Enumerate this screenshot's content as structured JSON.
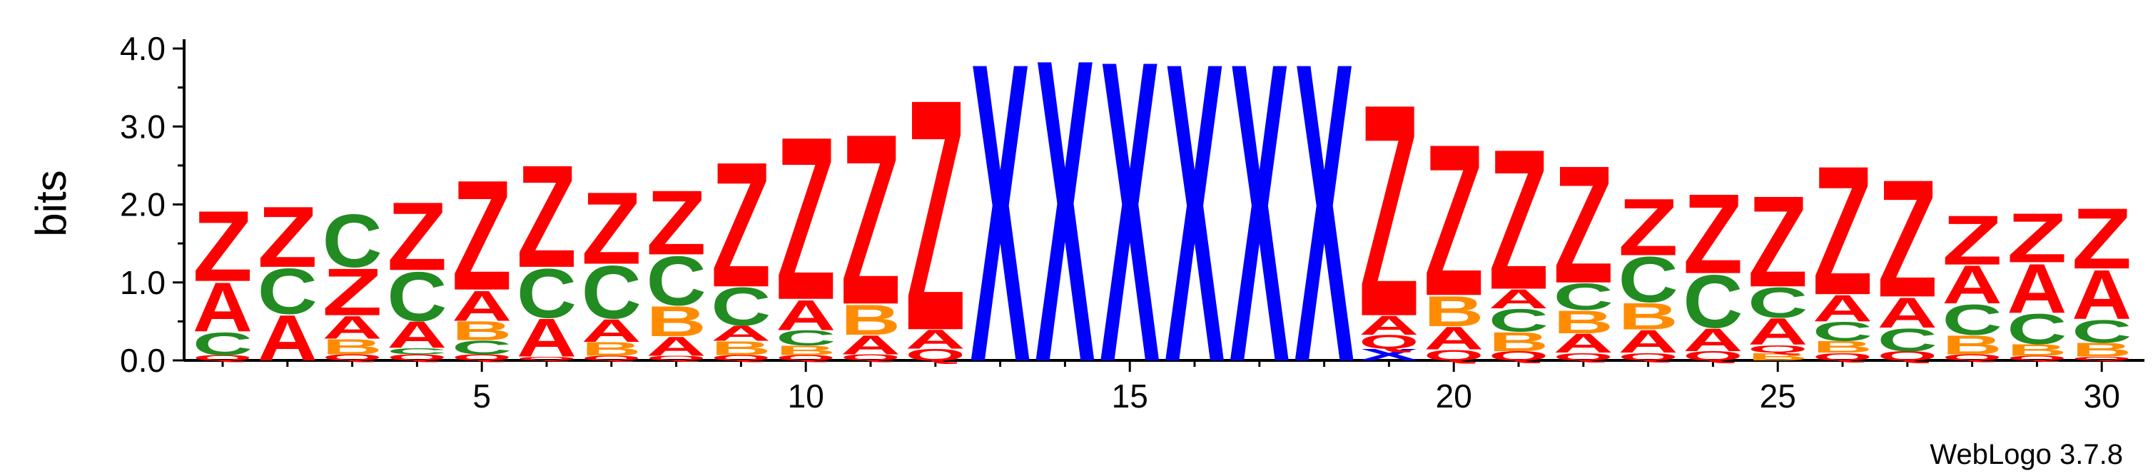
{
  "chart_data": {
    "type": "sequence-logo",
    "title": "",
    "ylabel": "bits",
    "xlabel": "",
    "ylim": [
      0,
      4.0
    ],
    "y_ticks": [
      "0.0",
      "1.0",
      "2.0",
      "3.0",
      "4.0"
    ],
    "y_tick_values": [
      0,
      1,
      2,
      3,
      4
    ],
    "x_ticks": [
      "5",
      "10",
      "15",
      "20",
      "25",
      "30"
    ],
    "x_tick_values": [
      5,
      10,
      15,
      20,
      25,
      30
    ],
    "credit": "WebLogo 3.7.8",
    "colors": {
      "Z": "#ff0000",
      "A": "#ff0000",
      "Q": "#ff0000",
      "C": "#228b22",
      "B": "#ff8c00",
      "X": "#0000ff",
      "P": "#800080"
    },
    "positions": [
      {
        "pos": 1,
        "stack": [
          [
            "Q",
            0.07
          ],
          [
            "C",
            0.3
          ],
          [
            "A",
            0.65
          ],
          [
            "Z",
            0.93
          ]
        ]
      },
      {
        "pos": 2,
        "stack": [
          [
            "A",
            0.6
          ],
          [
            "C",
            0.6
          ],
          [
            "Z",
            0.8
          ]
        ]
      },
      {
        "pos": 3,
        "stack": [
          [
            "Q",
            0.08
          ],
          [
            "B",
            0.2
          ],
          [
            "A",
            0.3
          ],
          [
            "Z",
            0.62
          ],
          [
            "C",
            0.7
          ]
        ]
      },
      {
        "pos": 4,
        "stack": [
          [
            "Q",
            0.08
          ],
          [
            "C",
            0.08
          ],
          [
            "A",
            0.35
          ],
          [
            "C",
            0.65
          ],
          [
            "Z",
            0.9
          ]
        ]
      },
      {
        "pos": 5,
        "stack": [
          [
            "Q",
            0.08
          ],
          [
            "C",
            0.18
          ],
          [
            "B",
            0.25
          ],
          [
            "A",
            0.4
          ],
          [
            "Z",
            1.45
          ]
        ]
      },
      {
        "pos": 6,
        "stack": [
          [
            "Q",
            0.05
          ],
          [
            "A",
            0.5
          ],
          [
            "C",
            0.65
          ],
          [
            "Z",
            1.35
          ]
        ]
      },
      {
        "pos": 7,
        "stack": [
          [
            "Q",
            0.06
          ],
          [
            "B",
            0.18
          ],
          [
            "A",
            0.3
          ],
          [
            "C",
            0.7
          ],
          [
            "Z",
            0.95
          ]
        ]
      },
      {
        "pos": 8,
        "stack": [
          [
            "Q",
            0.06
          ],
          [
            "A",
            0.25
          ],
          [
            "B",
            0.4
          ],
          [
            "C",
            0.65
          ],
          [
            "Z",
            0.85
          ]
        ]
      },
      {
        "pos": 9,
        "stack": [
          [
            "Q",
            0.07
          ],
          [
            "B",
            0.18
          ],
          [
            "A",
            0.2
          ],
          [
            "C",
            0.5
          ],
          [
            "Z",
            1.65
          ]
        ]
      },
      {
        "pos": 10,
        "stack": [
          [
            "Q",
            0.07
          ],
          [
            "B",
            0.12
          ],
          [
            "C",
            0.2
          ],
          [
            "A",
            0.4
          ],
          [
            "Z",
            2.15
          ]
        ]
      },
      {
        "pos": 11,
        "stack": [
          [
            "Q",
            0.08
          ],
          [
            "A",
            0.25
          ],
          [
            "B",
            0.4
          ],
          [
            "Z",
            2.25
          ]
        ]
      },
      {
        "pos": 12,
        "stack": [
          [
            "Q",
            0.15
          ],
          [
            "A",
            0.25
          ],
          [
            "Z",
            3.05
          ]
        ]
      },
      {
        "pos": 13,
        "stack": [
          [
            "X",
            3.95
          ]
        ]
      },
      {
        "pos": 14,
        "stack": [
          [
            "X",
            4.0
          ]
        ]
      },
      {
        "pos": 15,
        "stack": [
          [
            "X",
            3.98
          ]
        ]
      },
      {
        "pos": 16,
        "stack": [
          [
            "X",
            3.95
          ]
        ]
      },
      {
        "pos": 17,
        "stack": [
          [
            "X",
            3.95
          ]
        ]
      },
      {
        "pos": 18,
        "stack": [
          [
            "X",
            3.95
          ]
        ]
      },
      {
        "pos": 19,
        "stack": [
          [
            "X",
            0.15
          ],
          [
            "Q",
            0.18
          ],
          [
            "A",
            0.25
          ],
          [
            "Z",
            2.8
          ]
        ]
      },
      {
        "pos": 20,
        "stack": [
          [
            "Q",
            0.14
          ],
          [
            "A",
            0.3
          ],
          [
            "B",
            0.4
          ],
          [
            "Z",
            2.0
          ]
        ]
      },
      {
        "pos": 21,
        "stack": [
          [
            "Q",
            0.12
          ],
          [
            "B",
            0.25
          ],
          [
            "C",
            0.3
          ],
          [
            "A",
            0.25
          ],
          [
            "Z",
            1.85
          ]
        ]
      },
      {
        "pos": 22,
        "stack": [
          [
            "Q",
            0.1
          ],
          [
            "A",
            0.25
          ],
          [
            "B",
            0.3
          ],
          [
            "C",
            0.35
          ],
          [
            "Z",
            1.55
          ]
        ]
      },
      {
        "pos": 23,
        "stack": [
          [
            "Q",
            0.1
          ],
          [
            "A",
            0.3
          ],
          [
            "B",
            0.35
          ],
          [
            "C",
            0.6
          ],
          [
            "Z",
            0.75
          ]
        ]
      },
      {
        "pos": 24,
        "stack": [
          [
            "Q",
            0.12
          ],
          [
            "A",
            0.3
          ],
          [
            "C",
            0.7
          ],
          [
            "Z",
            1.05
          ]
        ]
      },
      {
        "pos": 25,
        "stack": [
          [
            "B",
            0.1
          ],
          [
            "Q",
            0.1
          ],
          [
            "A",
            0.35
          ],
          [
            "C",
            0.4
          ],
          [
            "Z",
            1.2
          ]
        ]
      },
      {
        "pos": 26,
        "stack": [
          [
            "Q",
            0.1
          ],
          [
            "B",
            0.15
          ],
          [
            "C",
            0.25
          ],
          [
            "A",
            0.35
          ],
          [
            "Z",
            1.7
          ]
        ]
      },
      {
        "pos": 27,
        "stack": [
          [
            "Q",
            0.12
          ],
          [
            "C",
            0.3
          ],
          [
            "A",
            0.4
          ],
          [
            "Z",
            1.55
          ]
        ]
      },
      {
        "pos": 28,
        "stack": [
          [
            "Q",
            0.08
          ],
          [
            "B",
            0.25
          ],
          [
            "C",
            0.4
          ],
          [
            "A",
            0.5
          ],
          [
            "Z",
            0.65
          ]
        ]
      },
      {
        "pos": 29,
        "stack": [
          [
            "Q",
            0.06
          ],
          [
            "B",
            0.15
          ],
          [
            "C",
            0.4
          ],
          [
            "A",
            0.65
          ],
          [
            "Z",
            0.65
          ]
        ]
      },
      {
        "pos": 30,
        "stack": [
          [
            "Q",
            0.05
          ],
          [
            "B",
            0.18
          ],
          [
            "C",
            0.3
          ],
          [
            "A",
            0.65
          ],
          [
            "Z",
            0.8
          ]
        ]
      }
    ]
  }
}
